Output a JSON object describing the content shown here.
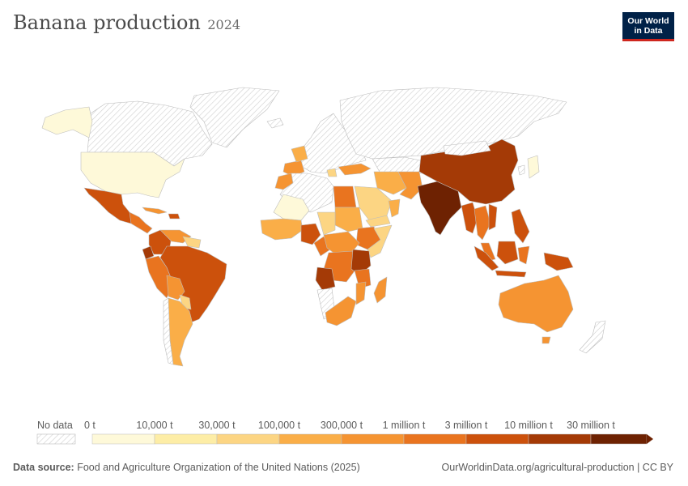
{
  "header": {
    "title": "Banana production",
    "year": "2024"
  },
  "logo": {
    "line1": "Our World",
    "line2": "in Data"
  },
  "legend": {
    "no_data_label": "No data",
    "bins": [
      {
        "label": "0 t",
        "color": "#fef9d9"
      },
      {
        "label": "10,000 t",
        "color": "#fdeda6"
      },
      {
        "label": "30,000 t",
        "color": "#fcd583"
      },
      {
        "label": "100,000 t",
        "color": "#faae48"
      },
      {
        "label": "300,000 t",
        "color": "#f59432"
      },
      {
        "label": "1 million t",
        "color": "#e9741f"
      },
      {
        "label": "3 million t",
        "color": "#cc510c"
      },
      {
        "label": "10 million t",
        "color": "#a43a06"
      },
      {
        "label": "30 million t",
        "color": "#6e2202"
      }
    ]
  },
  "footer": {
    "source_label": "Data source:",
    "source_text": "Food and Agriculture Organization of the United Nations (2025)",
    "url": "OurWorldinData.org/agricultural-production | CC BY"
  }
}
